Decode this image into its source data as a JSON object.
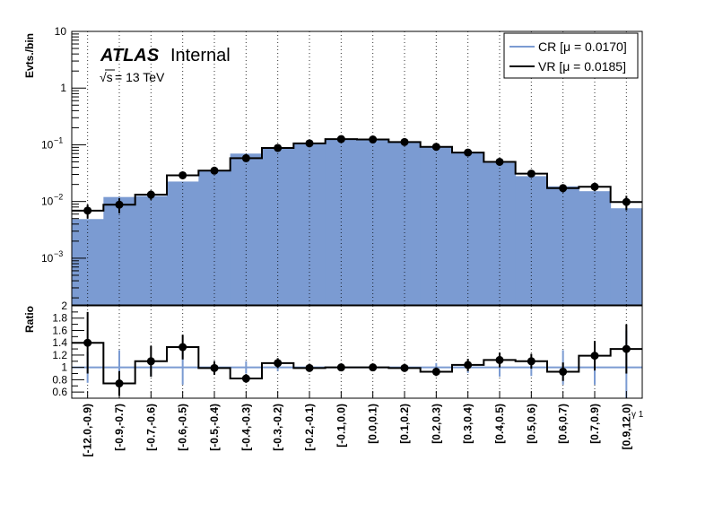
{
  "chart_data": {
    "type": "histogram",
    "label": {
      "experiment": "ATLAS",
      "status": "Internal",
      "energy_prefix": "√s",
      "energy": " = 13 TeV"
    },
    "x_axis": {
      "label": "γ 1",
      "scale": "categorical"
    },
    "bins": [
      "[-12.0,-0.9)",
      "[-0.9,-0.7)",
      "[-0.7,-0.6)",
      "[-0.6,-0.5)",
      "[-0.5,-0.4)",
      "[-0.4,-0.3)",
      "[-0.3,-0.2)",
      "[-0.2,-0.1)",
      "[-0.1,0.0)",
      "[0.0,0.1)",
      "[0.1,0.2)",
      "[0.2,0.3)",
      "[0.3,0.4)",
      "[0.4,0.5)",
      "[0.5,0.6)",
      "[0.6,0.7)",
      "[0.7,0.9)",
      "[0.9,12.0)"
    ],
    "upper_panel": {
      "ylabel": "Evts./bin",
      "yscale": "log",
      "ylim": [
        0.00015,
        10
      ],
      "yticks": [
        {
          "value": 10,
          "label": "10"
        },
        {
          "value": 1,
          "label": "1"
        },
        {
          "value": 0.1,
          "label": "10",
          "exp": "−1"
        },
        {
          "value": 0.01,
          "label": "10",
          "exp": "−2"
        },
        {
          "value": 0.001,
          "label": "10",
          "exp": "−3"
        }
      ],
      "series": [
        {
          "name": "CR [μ = 0.0170]",
          "style": "filled-histogram",
          "color": "#7b9bd2",
          "values": [
            0.0049,
            0.012,
            0.0125,
            0.0225,
            0.035,
            0.07,
            0.089,
            0.108,
            0.128,
            0.124,
            0.114,
            0.094,
            0.071,
            0.048,
            0.028,
            0.0185,
            0.0152,
            0.0076
          ]
        },
        {
          "name": "VR [μ = 0.0185]",
          "style": "step-with-points",
          "color": "#000000",
          "values": [
            0.0069,
            0.0088,
            0.0132,
            0.029,
            0.035,
            0.058,
            0.088,
            0.106,
            0.126,
            0.124,
            0.112,
            0.092,
            0.073,
            0.05,
            0.031,
            0.0172,
            0.0182,
            0.0098
          ],
          "errors": [
            0.0019,
            0.0026,
            0.0025,
            0.004,
            0.0038,
            0.0055,
            0.007,
            0.0075,
            0.008,
            0.008,
            0.0075,
            0.007,
            0.006,
            0.005,
            0.0035,
            0.0028,
            0.003,
            0.0028
          ]
        }
      ],
      "legend_position": "top-right"
    },
    "lower_panel": {
      "ylabel": "Ratio",
      "ylim": [
        0.5,
        2.0
      ],
      "yticks": [
        0.6,
        0.8,
        1,
        1.2,
        1.4,
        1.6,
        1.8,
        2
      ],
      "reference_line": 1,
      "reference_color": "#7b9bd2",
      "ratio": [
        1.4,
        0.74,
        1.1,
        1.33,
        0.99,
        0.82,
        1.07,
        0.99,
        1.0,
        1.0,
        0.99,
        0.93,
        1.04,
        1.12,
        1.1,
        0.93,
        1.19,
        1.3
      ],
      "ratio_errors": [
        0.5,
        0.2,
        0.25,
        0.2,
        0.11,
        0.07,
        0.08,
        0.05,
        0.04,
        0.04,
        0.05,
        0.07,
        0.1,
        0.12,
        0.12,
        0.15,
        0.24,
        0.4
      ],
      "cr_errors": [
        0.25,
        0.28,
        0.15,
        0.28,
        0.1,
        0.1,
        0.06,
        0.04,
        0.03,
        0.03,
        0.04,
        0.07,
        0.09,
        0.15,
        0.14,
        0.28,
        0.28,
        0.6
      ]
    },
    "grid": "vertical-dotted"
  }
}
